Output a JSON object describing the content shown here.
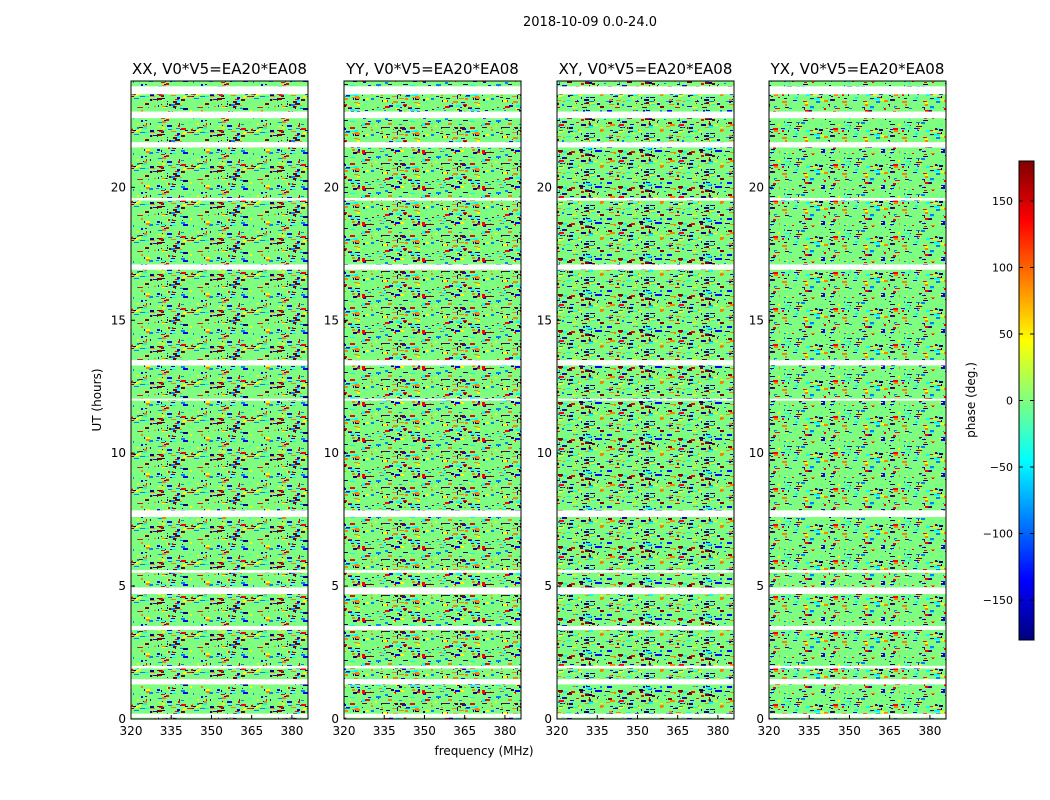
{
  "figure": {
    "suptitle": "2018-10-09 0.0-24.0",
    "xlabel": "frequency (MHz)",
    "ylabel": "UT (hours)"
  },
  "chart_data": {
    "type": "heatmap",
    "x": {
      "label": "frequency (MHz)",
      "range": [
        320,
        386
      ],
      "ticks": [
        320,
        335,
        350,
        365,
        380
      ]
    },
    "y": {
      "label": "UT (hours)",
      "range": [
        0,
        24
      ],
      "ticks": [
        0,
        5,
        10,
        15,
        20
      ]
    },
    "panels": [
      {
        "title": "XX, V0*V5=EA20*EA08",
        "polarization": "XX"
      },
      {
        "title": "YY, V0*V5=EA20*EA08",
        "polarization": "YY"
      },
      {
        "title": "XY, V0*V5=EA20*EA08",
        "polarization": "XY"
      },
      {
        "title": "YX, V0*V5=EA20*EA08",
        "polarization": "YX"
      }
    ],
    "blank_ut_ranges": [
      [
        0.05,
        0.2
      ],
      [
        1.3,
        1.5
      ],
      [
        1.9,
        2.0
      ],
      [
        3.35,
        3.5
      ],
      [
        4.7,
        4.95
      ],
      [
        5.5,
        5.6
      ],
      [
        7.6,
        7.85
      ],
      [
        12.0,
        12.05
      ],
      [
        13.3,
        13.5
      ],
      [
        16.9,
        17.1
      ],
      [
        19.5,
        19.6
      ],
      [
        21.5,
        21.7
      ],
      [
        22.6,
        22.85
      ],
      [
        23.5,
        23.8
      ]
    ],
    "colorbar": {
      "label": "phase (deg.)",
      "range": [
        -180,
        180
      ],
      "ticks": [
        150,
        100,
        50,
        0,
        -50,
        -100,
        -150
      ],
      "colormap": [
        "#00007f",
        "#0000ff",
        "#007fff",
        "#00ffff",
        "#7fff7f",
        "#ffff00",
        "#ff7f00",
        "#ff0000",
        "#7f0000"
      ]
    }
  }
}
